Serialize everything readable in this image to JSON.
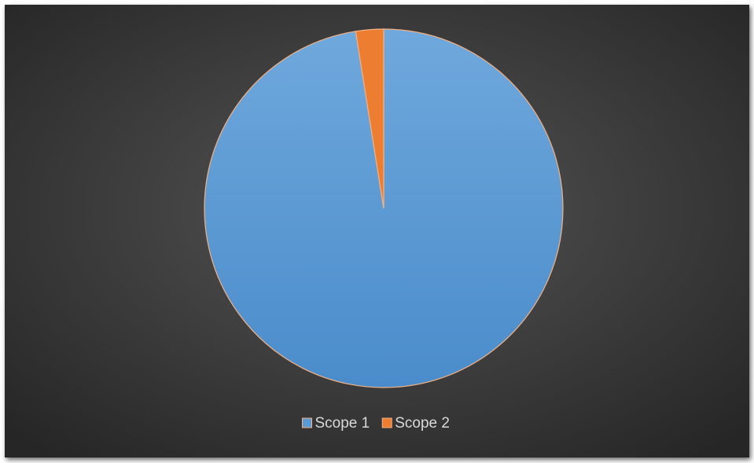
{
  "chart_data": {
    "type": "pie",
    "categories": [
      "Scope 1",
      "Scope 2"
    ],
    "values": [
      97.5,
      2.5
    ],
    "colors": [
      "#5b9bd5",
      "#ed7d31"
    ],
    "legend": "bottom"
  }
}
